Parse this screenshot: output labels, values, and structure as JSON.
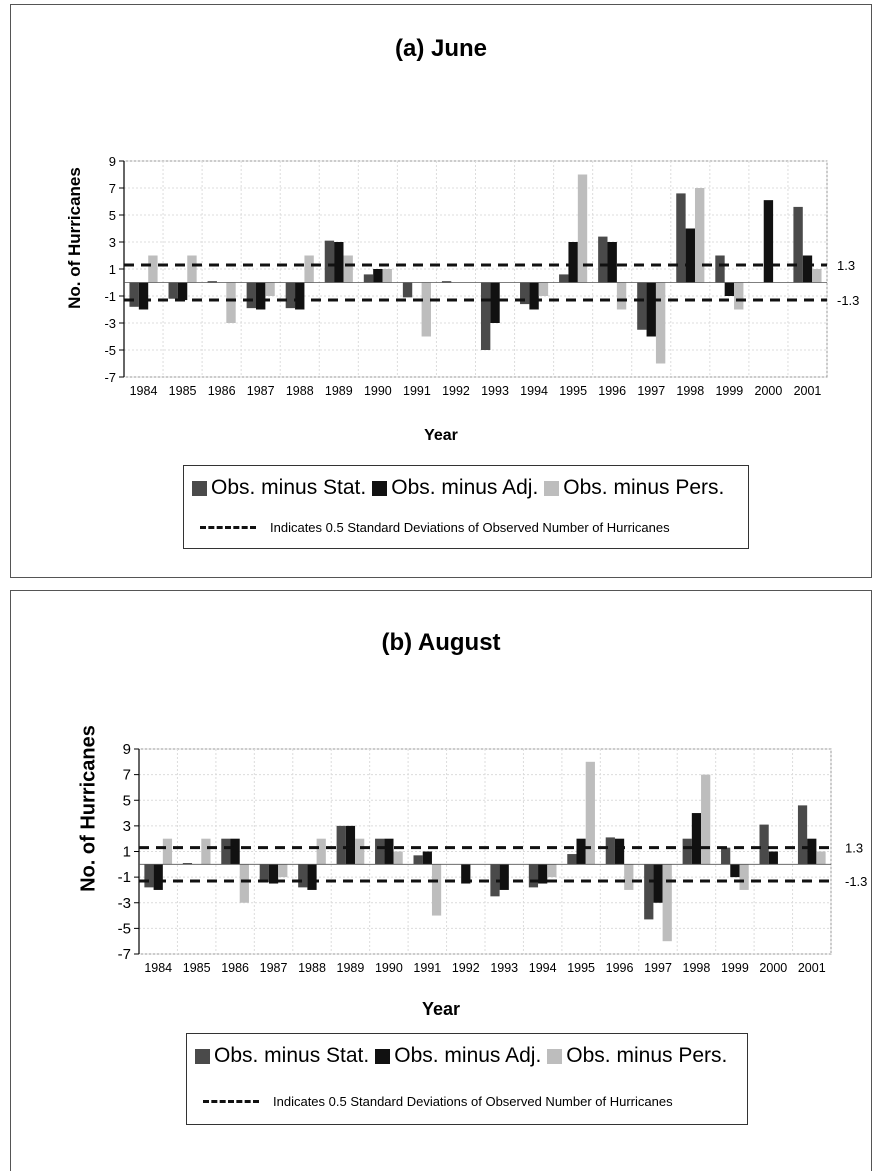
{
  "chart_data": [
    {
      "type": "bar",
      "title": "(a) June",
      "xlabel": "Year",
      "ylabel": "No. of Hurricanes",
      "ylim": [
        -7,
        9
      ],
      "yticks": [
        "9",
        "7",
        "5",
        "3",
        "1",
        "-1",
        "-3",
        "-5",
        "-7"
      ],
      "categories": [
        "1984",
        "1985",
        "1986",
        "1987",
        "1988",
        "1989",
        "1990",
        "1991",
        "1992",
        "1993",
        "1994",
        "1995",
        "1996",
        "1997",
        "1998",
        "1999",
        "2000",
        "2001"
      ],
      "series": [
        {
          "name": "Obs. minus Stat.",
          "color": "#4a4a4a",
          "values": [
            -1.8,
            -1.2,
            0.1,
            -1.9,
            -1.9,
            3.1,
            0.6,
            -1.1,
            0.1,
            -5.0,
            -1.6,
            0.6,
            3.4,
            -3.5,
            6.6,
            2.0,
            0.0,
            5.6
          ]
        },
        {
          "name": "Obs. minus Adj.",
          "color": "#111111",
          "values": [
            -2.0,
            -1.3,
            0,
            -2.0,
            -2.0,
            3.0,
            1.0,
            0,
            0,
            -3.0,
            -2.0,
            3.0,
            3.0,
            -4.0,
            4.0,
            -1.0,
            6.1,
            2.0
          ]
        },
        {
          "name": "Obs. minus Pers.",
          "color": "#bdbdbd",
          "values": [
            2.0,
            2.0,
            -3.0,
            -1.0,
            2.0,
            2.0,
            1.0,
            -4.0,
            0,
            0,
            -1.0,
            8.0,
            -2.0,
            -6.0,
            7.0,
            -2.0,
            0,
            1.0
          ]
        }
      ],
      "reference_lines": [
        {
          "value": 1.3,
          "label": "1.3"
        },
        {
          "value": -1.3,
          "label": "-1.3"
        }
      ],
      "grid": true,
      "legend_position": "bottom"
    },
    {
      "type": "bar",
      "title": "(b) August",
      "xlabel": "Year",
      "ylabel": "No. of Hurricanes",
      "ylim": [
        -7,
        9
      ],
      "yticks": [
        "9",
        "7",
        "5",
        "3",
        "1",
        "-1",
        "-3",
        "-5",
        "-7"
      ],
      "categories": [
        "1984",
        "1985",
        "1986",
        "1987",
        "1988",
        "1989",
        "1990",
        "1991",
        "1992",
        "1993",
        "1994",
        "1995",
        "1996",
        "1997",
        "1998",
        "1999",
        "2000",
        "2001"
      ],
      "series": [
        {
          "name": "Obs. minus Stat.",
          "color": "#4a4a4a",
          "values": [
            -1.8,
            0.1,
            2.0,
            -1.4,
            -1.8,
            3.0,
            2.0,
            0.7,
            0,
            -2.5,
            -1.8,
            0.8,
            2.1,
            -4.3,
            2.0,
            1.3,
            3.1,
            4.6
          ]
        },
        {
          "name": "Obs. minus Adj.",
          "color": "#111111",
          "values": [
            -2.0,
            0,
            2.0,
            -1.5,
            -2.0,
            3.0,
            2.0,
            1.0,
            -1.5,
            -2.0,
            -1.5,
            2.0,
            2.0,
            -3.0,
            4.0,
            -1.0,
            1.0,
            2.0
          ]
        },
        {
          "name": "Obs. minus Pers.",
          "color": "#bdbdbd",
          "values": [
            2.0,
            2.0,
            -3.0,
            -1.0,
            2.0,
            2.0,
            1.0,
            -4.0,
            0,
            0,
            -1.0,
            8.0,
            -2.0,
            -6.0,
            7.0,
            -2.0,
            0,
            1.0
          ]
        }
      ],
      "reference_lines": [
        {
          "value": 1.3,
          "label": "1.3"
        },
        {
          "value": -1.3,
          "label": "-1.3"
        }
      ],
      "grid": true,
      "legend_position": "bottom"
    }
  ],
  "legend": {
    "series_labels": [
      "Obs. minus Stat.",
      "Obs. minus Adj.",
      "Obs. minus Pers."
    ],
    "note": "Indicates 0.5 Standard Deviations of Observed Number of Hurricanes"
  }
}
